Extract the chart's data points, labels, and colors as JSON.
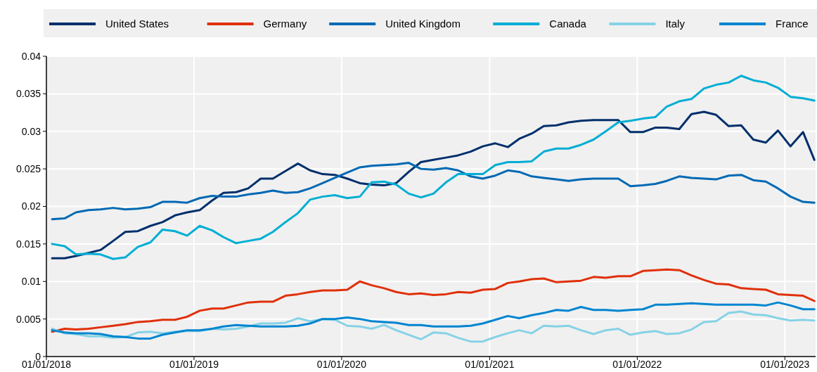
{
  "chart_data": {
    "type": "line",
    "x": [
      "2018-01-15",
      "2018-02-15",
      "2018-03-15",
      "2018-04-15",
      "2018-05-15",
      "2018-06-15",
      "2018-07-15",
      "2018-08-15",
      "2018-09-15",
      "2018-10-15",
      "2018-11-15",
      "2018-12-15",
      "2019-01-15",
      "2019-02-15",
      "2019-03-15",
      "2019-04-15",
      "2019-05-15",
      "2019-06-15",
      "2019-07-15",
      "2019-08-15",
      "2019-09-15",
      "2019-10-15",
      "2019-11-15",
      "2019-12-15",
      "2020-01-15",
      "2020-02-15",
      "2020-03-15",
      "2020-04-15",
      "2020-05-15",
      "2020-06-15",
      "2020-07-15",
      "2020-08-15",
      "2020-09-15",
      "2020-10-15",
      "2020-11-15",
      "2020-12-15",
      "2021-01-15",
      "2021-02-15",
      "2021-03-15",
      "2021-04-15",
      "2021-05-15",
      "2021-06-15",
      "2021-07-15",
      "2021-08-15",
      "2021-09-15",
      "2021-10-15",
      "2021-11-15",
      "2021-12-15",
      "2022-01-15",
      "2022-02-15",
      "2022-03-15",
      "2022-04-15",
      "2022-05-15",
      "2022-06-15",
      "2022-07-15",
      "2022-08-15",
      "2022-09-15",
      "2022-10-15",
      "2022-11-15",
      "2022-12-15",
      "2023-01-15",
      "2023-02-15",
      "2023-03-15"
    ],
    "series": [
      {
        "name": "United States",
        "color": "#002f6c",
        "values": [
          0.0131,
          0.0131,
          0.0134,
          0.0138,
          0.0142,
          0.0154,
          0.0166,
          0.0167,
          0.0174,
          0.0179,
          0.0188,
          0.0192,
          0.0195,
          0.0208,
          0.0218,
          0.0219,
          0.0224,
          0.0237,
          0.0237,
          0.0247,
          0.0257,
          0.0248,
          0.0243,
          0.0242,
          0.0237,
          0.0231,
          0.0229,
          0.0228,
          0.0231,
          0.0246,
          0.0259,
          0.0262,
          0.0265,
          0.0268,
          0.0273,
          0.028,
          0.0284,
          0.0279,
          0.029,
          0.0297,
          0.0307,
          0.0308,
          0.0312,
          0.0314,
          0.0315,
          0.0315,
          0.0315,
          0.0299,
          0.0299,
          0.0305,
          0.0305,
          0.0303,
          0.0323,
          0.0326,
          0.0322,
          0.0307,
          0.0308,
          0.0289,
          0.0285,
          0.0301,
          0.028,
          0.0299,
          0.0262
        ]
      },
      {
        "name": "Germany",
        "color": "#e0300b",
        "values": [
          0.0033,
          0.0037,
          0.0036,
          0.0037,
          0.0039,
          0.0041,
          0.0043,
          0.0046,
          0.0047,
          0.0049,
          0.0049,
          0.0053,
          0.0061,
          0.0064,
          0.0064,
          0.0068,
          0.0072,
          0.0073,
          0.0073,
          0.0081,
          0.0083,
          0.0086,
          0.0088,
          0.0088,
          0.0089,
          0.01,
          0.0095,
          0.0091,
          0.0086,
          0.0083,
          0.0084,
          0.0082,
          0.0083,
          0.0086,
          0.0085,
          0.0089,
          0.009,
          0.0098,
          0.01,
          0.0103,
          0.0104,
          0.0099,
          0.01,
          0.0101,
          0.0106,
          0.0105,
          0.0107,
          0.0107,
          0.0114,
          0.0115,
          0.0116,
          0.0115,
          0.0108,
          0.0102,
          0.0097,
          0.0096,
          0.0091,
          0.009,
          0.0089,
          0.0083,
          0.0082,
          0.0081,
          0.0074
        ]
      },
      {
        "name": "United Kingdom",
        "color": "#0069b4",
        "values": [
          0.0183,
          0.0184,
          0.0192,
          0.0195,
          0.0196,
          0.0198,
          0.0196,
          0.0197,
          0.0199,
          0.0206,
          0.0206,
          0.0205,
          0.0211,
          0.0214,
          0.0213,
          0.0213,
          0.0216,
          0.0218,
          0.0221,
          0.0218,
          0.0219,
          0.0224,
          0.0231,
          0.0238,
          0.0245,
          0.0252,
          0.0254,
          0.0255,
          0.0256,
          0.0258,
          0.025,
          0.0249,
          0.0251,
          0.0248,
          0.024,
          0.0237,
          0.0241,
          0.0248,
          0.0246,
          0.024,
          0.0238,
          0.0236,
          0.0234,
          0.0236,
          0.0237,
          0.0237,
          0.0237,
          0.0227,
          0.0228,
          0.023,
          0.0234,
          0.024,
          0.0238,
          0.0237,
          0.0236,
          0.0241,
          0.0242,
          0.0235,
          0.0233,
          0.0224,
          0.0213,
          0.0206,
          0.0205
        ]
      },
      {
        "name": "Canada",
        "color": "#00aed4",
        "values": [
          0.015,
          0.0147,
          0.0136,
          0.0137,
          0.0136,
          0.013,
          0.0132,
          0.0146,
          0.0152,
          0.0169,
          0.0167,
          0.0161,
          0.0174,
          0.0168,
          0.0159,
          0.0151,
          0.0154,
          0.0157,
          0.0166,
          0.0179,
          0.0191,
          0.0209,
          0.0213,
          0.0215,
          0.0211,
          0.0213,
          0.0232,
          0.0233,
          0.0229,
          0.0217,
          0.0212,
          0.0217,
          0.0232,
          0.0243,
          0.0243,
          0.0243,
          0.0255,
          0.0259,
          0.0259,
          0.026,
          0.0273,
          0.0277,
          0.0277,
          0.0282,
          0.0289,
          0.03,
          0.0312,
          0.0314,
          0.0317,
          0.0319,
          0.0333,
          0.034,
          0.0343,
          0.0357,
          0.0362,
          0.0365,
          0.0374,
          0.0368,
          0.0365,
          0.0358,
          0.0346,
          0.0344,
          0.0341
        ]
      },
      {
        "name": "Italy",
        "color": "#86d2e6",
        "values": [
          0.0037,
          0.0031,
          0.003,
          0.0027,
          0.0027,
          0.0025,
          0.0026,
          0.0032,
          0.0033,
          0.0031,
          0.0033,
          0.0034,
          0.0034,
          0.0037,
          0.0036,
          0.0037,
          0.004,
          0.0044,
          0.0044,
          0.0045,
          0.0051,
          0.0047,
          0.005,
          0.0049,
          0.0041,
          0.004,
          0.0037,
          0.0042,
          0.0035,
          0.0029,
          0.0023,
          0.0032,
          0.0031,
          0.0025,
          0.002,
          0.002,
          0.0026,
          0.0031,
          0.0035,
          0.0031,
          0.0041,
          0.004,
          0.0041,
          0.0035,
          0.003,
          0.0035,
          0.0037,
          0.0029,
          0.0032,
          0.0034,
          0.003,
          0.0031,
          0.0036,
          0.0046,
          0.0047,
          0.0058,
          0.006,
          0.0056,
          0.0055,
          0.0051,
          0.0048,
          0.0049,
          0.0048
        ]
      },
      {
        "name": "France",
        "color": "#0085d0",
        "values": [
          0.0035,
          0.0032,
          0.0031,
          0.0031,
          0.003,
          0.0027,
          0.0026,
          0.0024,
          0.0024,
          0.0029,
          0.0032,
          0.0035,
          0.0035,
          0.0037,
          0.004,
          0.0042,
          0.0041,
          0.004,
          0.004,
          0.004,
          0.0041,
          0.0044,
          0.005,
          0.005,
          0.0052,
          0.005,
          0.0047,
          0.0046,
          0.0045,
          0.0042,
          0.0042,
          0.004,
          0.004,
          0.004,
          0.0041,
          0.0044,
          0.0049,
          0.0054,
          0.0051,
          0.0055,
          0.0058,
          0.0062,
          0.0061,
          0.0066,
          0.0062,
          0.0062,
          0.0061,
          0.0062,
          0.0063,
          0.0069,
          0.0069,
          0.007,
          0.0071,
          0.007,
          0.0069,
          0.0069,
          0.0069,
          0.0069,
          0.0068,
          0.0072,
          0.0068,
          0.0063,
          0.0063
        ]
      }
    ],
    "xlim": [
      "2018-01-01",
      "2023-03-18"
    ],
    "xticks": [
      {
        "value": "2018-01-01",
        "label": "01/01/2018"
      },
      {
        "value": "2019-01-01",
        "label": "01/01/2019"
      },
      {
        "value": "2020-01-01",
        "label": "01/01/2020"
      },
      {
        "value": "2021-01-01",
        "label": "01/01/2021"
      },
      {
        "value": "2022-01-01",
        "label": "01/01/2022"
      },
      {
        "value": "2023-01-01",
        "label": "01/01/2023"
      }
    ],
    "ylim": [
      0,
      0.04
    ],
    "yticks": [
      0,
      0.005,
      0.01,
      0.015,
      0.02,
      0.025,
      0.03,
      0.035,
      0.04
    ],
    "grid": true,
    "legend": "top",
    "line_style": "solid",
    "marker": "none"
  }
}
